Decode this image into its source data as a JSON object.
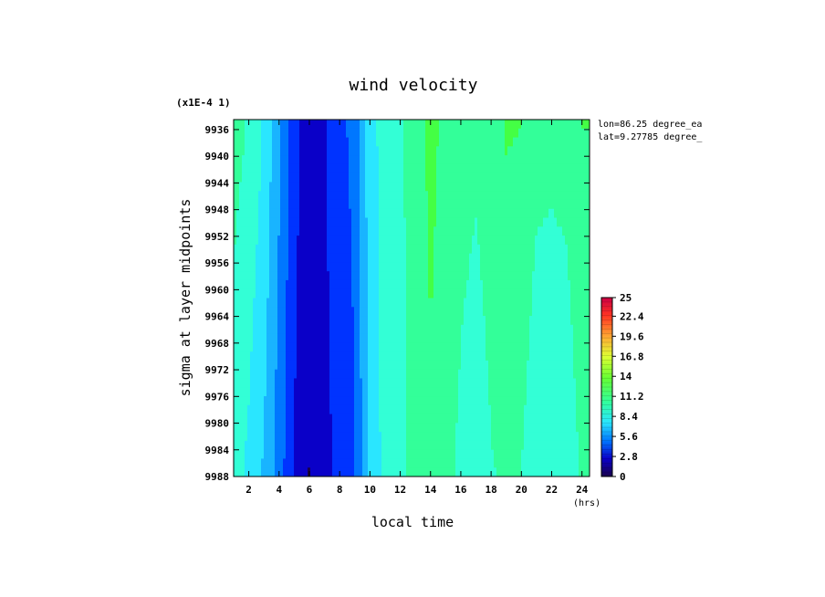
{
  "chart_data": {
    "type": "heatmap",
    "title": "wind velocity",
    "scale_note": "(x1E-4 1)",
    "xlabel": "local time",
    "xunit": "(hrs)",
    "ylabel": "sigma at layer midpoints",
    "xlim": [
      1,
      24.5
    ],
    "ylim": [
      9934.5,
      9988
    ],
    "x_ticks": [
      2,
      4,
      6,
      8,
      10,
      12,
      14,
      16,
      18,
      20,
      22,
      24
    ],
    "y_ticks": [
      9936,
      9940,
      9944,
      9948,
      9952,
      9956,
      9960,
      9964,
      9968,
      9972,
      9976,
      9980,
      9984,
      9988
    ],
    "annotations": [
      "lon=86.25 degree_ea",
      "lat=9.27785 degree_"
    ],
    "colorbar": {
      "min": 0,
      "max": 25,
      "tick_labels": [
        "25",
        "22.4",
        "19.6",
        "16.8",
        "14",
        "11.2",
        "8.4",
        "5.6",
        "2.8",
        "0"
      ],
      "tick_values": [
        25,
        22.4,
        19.6,
        16.8,
        14,
        11.2,
        8.4,
        5.6,
        2.8,
        0
      ]
    },
    "x": [
      1,
      2,
      3,
      4,
      5,
      6,
      7,
      8,
      9,
      10,
      11,
      12,
      13,
      14,
      15,
      16,
      17,
      18,
      19,
      20,
      21,
      22,
      23,
      24
    ],
    "y": [
      9936,
      9988
    ],
    "z": [
      [
        11.5,
        10.8,
        9.2,
        6.5,
        3.8,
        2.0,
        3.0,
        4.4,
        5.0,
        8.8,
        10.0,
        10.6,
        11.9,
        12.8,
        12.2,
        11.8,
        11.4,
        12.0,
        12.6,
        12.5,
        11.5,
        11.4,
        11.5,
        12.5
      ],
      [
        10.0,
        9.0,
        7.6,
        5.5,
        3.0,
        1.5,
        2.6,
        3.6,
        4.6,
        8.4,
        9.8,
        10.4,
        11.7,
        12.3,
        11.8,
        10.4,
        9.6,
        10.8,
        11.2,
        10.9,
        9.6,
        9.4,
        9.8,
        11.2
      ]
    ]
  },
  "colors": {
    "palette": [
      "#1a004d",
      "#0a00c8",
      "#0033ff",
      "#0077ff",
      "#19b4ff",
      "#2ae6ff",
      "#33ffd6",
      "#33ff99",
      "#44ff44",
      "#99ff33",
      "#ddff33",
      "#ffdd33",
      "#ffaa33",
      "#ff6633",
      "#ff2222",
      "#e60050"
    ]
  }
}
